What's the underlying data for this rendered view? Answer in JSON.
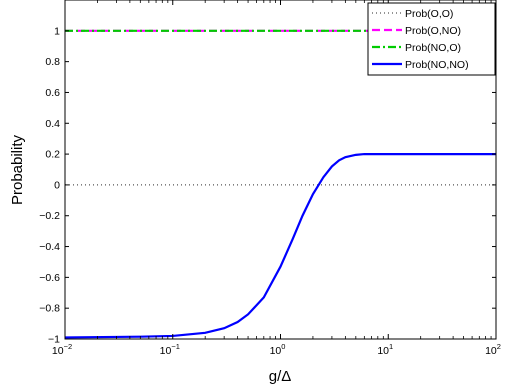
{
  "chart_data": {
    "type": "line",
    "title": "",
    "xlabel": "g/Δ",
    "ylabel": "Probability",
    "xscale": "log",
    "xlim": [
      0.01,
      100
    ],
    "ylim": [
      -1,
      1.2
    ],
    "x_ticks": [
      {
        "value": 0.01,
        "base": "10",
        "exp": "−2"
      },
      {
        "value": 0.1,
        "base": "10",
        "exp": "−1"
      },
      {
        "value": 1,
        "base": "10",
        "exp": "0"
      },
      {
        "value": 10,
        "base": "10",
        "exp": "1"
      },
      {
        "value": 100,
        "base": "10",
        "exp": "2"
      }
    ],
    "y_ticks": [
      {
        "value": 1,
        "label": "1"
      },
      {
        "value": 0.8,
        "label": "0.8"
      },
      {
        "value": 0.6,
        "label": "0.6"
      },
      {
        "value": 0.4,
        "label": "0.4"
      },
      {
        "value": 0.2,
        "label": "0.2"
      },
      {
        "value": 0,
        "label": "0"
      },
      {
        "value": -0.2,
        "label": "−0.2"
      },
      {
        "value": -0.4,
        "label": "−0.4"
      },
      {
        "value": -0.6,
        "label": "−0.6"
      },
      {
        "value": -0.8,
        "label": "−0.8"
      },
      {
        "value": -1,
        "label": "−1"
      }
    ],
    "grid": false,
    "legend_position": "top-right",
    "series": [
      {
        "name": "Prob(O,O)",
        "color": "#555555",
        "style": "dotted",
        "x": [
          0.01,
          100
        ],
        "y": [
          0,
          0
        ]
      },
      {
        "name": "Prob(O,NO)",
        "color": "#ff00ff",
        "style": "dashed",
        "x": [
          0.01,
          100
        ],
        "y": [
          1,
          1
        ]
      },
      {
        "name": "Prob(NO,O)",
        "color": "#00cc00",
        "style": "dashdot",
        "x": [
          0.01,
          100
        ],
        "y": [
          1,
          1
        ]
      },
      {
        "name": "Prob(NO,NO)",
        "color": "#0000ff",
        "style": "solid",
        "x": [
          0.01,
          0.05,
          0.1,
          0.2,
          0.3,
          0.4,
          0.5,
          0.7,
          1.0,
          1.3,
          1.6,
          2.0,
          2.5,
          3.0,
          3.5,
          4.0,
          5.0,
          6.0,
          8.0,
          10,
          20,
          50,
          100
        ],
        "y": [
          -0.99,
          -0.985,
          -0.98,
          -0.96,
          -0.93,
          -0.89,
          -0.84,
          -0.73,
          -0.53,
          -0.35,
          -0.2,
          -0.06,
          0.05,
          0.12,
          0.16,
          0.18,
          0.195,
          0.2,
          0.2,
          0.2,
          0.2,
          0.2,
          0.2
        ]
      }
    ]
  }
}
